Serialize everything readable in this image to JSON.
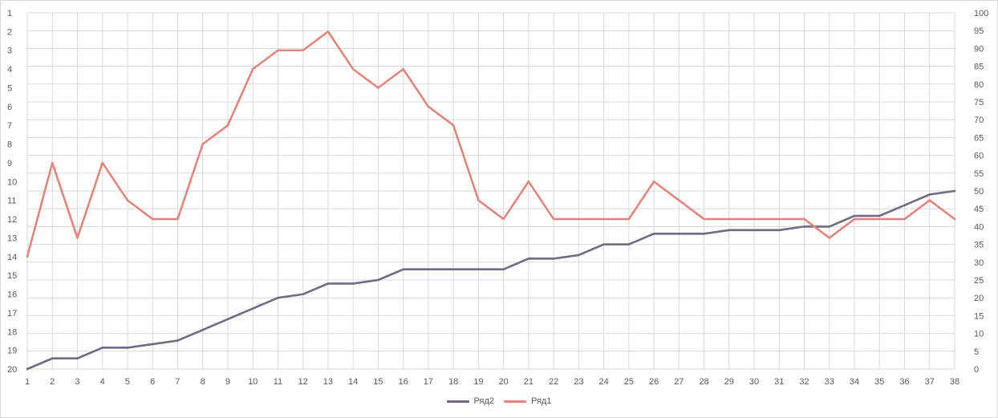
{
  "chart_data": {
    "type": "line",
    "title": "",
    "x": [
      "1",
      "2",
      "3",
      "4",
      "5",
      "6",
      "7",
      "8",
      "9",
      "10",
      "11",
      "12",
      "13",
      "14",
      "15",
      "16",
      "17",
      "18",
      "19",
      "20",
      "21",
      "22",
      "23",
      "24",
      "25",
      "26",
      "27",
      "28",
      "29",
      "30",
      "31",
      "32",
      "33",
      "34",
      "35",
      "36",
      "37",
      "38"
    ],
    "left_axis": {
      "min": 1,
      "max": 20,
      "reversed": true,
      "ticks": [
        1,
        2,
        3,
        4,
        5,
        6,
        7,
        8,
        9,
        10,
        11,
        12,
        13,
        14,
        15,
        16,
        17,
        18,
        19,
        20
      ]
    },
    "right_axis": {
      "min": 0,
      "max": 100,
      "step": 5,
      "ticks": [
        0,
        5,
        10,
        15,
        20,
        25,
        30,
        35,
        40,
        45,
        50,
        55,
        60,
        65,
        70,
        75,
        80,
        85,
        90,
        95,
        100
      ]
    },
    "grid": true,
    "legend_position": "bottom",
    "series": [
      {
        "name": "Ряд2",
        "axis": "right",
        "color": "#716a82",
        "values": [
          0,
          3,
          3,
          6,
          6,
          7,
          8,
          11,
          14,
          17,
          20,
          21,
          24,
          24,
          25,
          28,
          28,
          28,
          28,
          28,
          31,
          31,
          32,
          35,
          35,
          38,
          38,
          38,
          39,
          39,
          39,
          40,
          40,
          43,
          43,
          46,
          49,
          50
        ]
      },
      {
        "name": "Ряд1",
        "axis": "left",
        "color": "#e1867d",
        "values": [
          14,
          9,
          13,
          9,
          11,
          12,
          12,
          8,
          7,
          4,
          3,
          3,
          2,
          4,
          5,
          4,
          6,
          7,
          11,
          12,
          10,
          12,
          12,
          12,
          12,
          10,
          11,
          12,
          12,
          12,
          12,
          12,
          13,
          12,
          12,
          12,
          11,
          12
        ]
      }
    ]
  }
}
